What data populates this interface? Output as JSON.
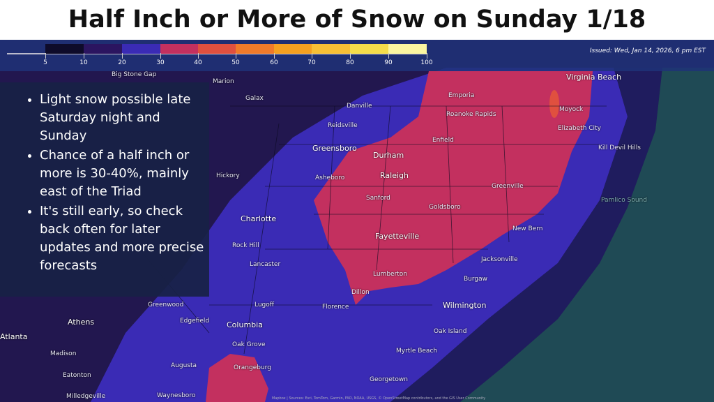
{
  "title": "Half Inch or More of Snow on Sunday 1/18",
  "legend": {
    "ticks": [
      "5",
      "10",
      "20",
      "30",
      "40",
      "50",
      "60",
      "70",
      "80",
      "90",
      "100"
    ],
    "colors": [
      "#0e0b2a",
      "#2b1560",
      "#3a2bb5",
      "#c3305f",
      "#e0503f",
      "#f07a2a",
      "#f5a020",
      "#f7bf35",
      "#f5dc4a",
      "#fbf5a0"
    ]
  },
  "issued": "Issued: Wed, Jan 14, 2026, 6 pm EST",
  "bullets": [
    "Light snow possible late Saturday night and Sunday",
    "Chance of a half inch or more is 30-40%, mainly east of the Triad",
    "It's still early, so check back often for later updates and more precise forecasts"
  ],
  "cities": [
    "Virginia Beach",
    "Emporia",
    "Marion",
    "Galax",
    "Danville",
    "Roanoke Rapids",
    "Moyock",
    "Reidsville",
    "Elizabeth City",
    "Greensboro",
    "Durham",
    "Enfield",
    "Kill Devil Hills",
    "Hickory",
    "Asheboro",
    "Raleigh",
    "Greenville",
    "Sanford",
    "Goldsboro",
    "Pamlico Sound",
    "Charlotte",
    "New Bern",
    "Fayetteville",
    "Rock Hill",
    "Lancaster",
    "Jacksonville",
    "Lumberton",
    "Burgaw",
    "Dillon",
    "Greenwood",
    "Lugoff",
    "Florence",
    "Wilmington",
    "Athens",
    "Columbia",
    "Oak Island",
    "Atlanta",
    "Edgefield",
    "Oak Grove",
    "Myrtle Beach",
    "Madison",
    "Augusta",
    "Orangeburg",
    "Georgetown",
    "Eatonton",
    "Milledgeville",
    "Waynesboro",
    "Big Stone Gap"
  ],
  "attribution": "Mapbox | Sources: Esri, TomTom, Garmin, FAO, NOAA, USGS, © OpenStreetMap contributors, and the GIS User Community"
}
